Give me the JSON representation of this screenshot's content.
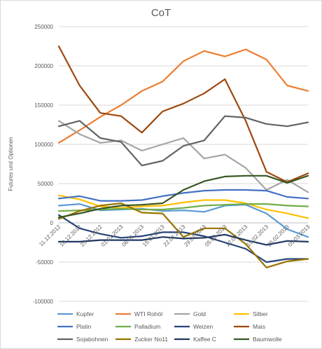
{
  "chart_data": {
    "type": "line",
    "title": "CoT",
    "xlabel": "",
    "ylabel": "Futures und Optionen",
    "ylim": [
      -100000,
      250000
    ],
    "ytick_step": 50000,
    "ytick_labels": [
      "250000",
      "200000",
      "150000",
      "100000",
      "50000",
      "0",
      "-50000",
      "-100000"
    ],
    "grid": true,
    "legend_position": "bottom",
    "categories": [
      "11.12.2012",
      "18.12.2012",
      "25.12.2012",
      "01.01.2013",
      "08.01.2013",
      "15.01.2013",
      "22.01.2013",
      "29.01.2013",
      "05.02.2013",
      "12.02.2013",
      "19.02.2013",
      "26.02.2013",
      "05.03.2013"
    ],
    "tick_labels": [
      "11.12.2012",
      "18.12.2012",
      "25.12.2012",
      "01.01.2013",
      "08.01.2013",
      "15.01.2013",
      "22.01.2013",
      "29.01.2013",
      "05.02.2013",
      "12.02.2013",
      "19.02.2013",
      "26.02.2013",
      "05.03.2013"
    ],
    "series": [
      {
        "name": "Kupfer",
        "color": "#5b9bd5",
        "values": [
          22000,
          24000,
          16000,
          17000,
          18000,
          15000,
          16000,
          14000,
          22000,
          23000,
          12000,
          -8000,
          -18000
        ]
      },
      {
        "name": "WTI Rohöl",
        "color": "#ed7d31",
        "values": [
          102000,
          118000,
          135000,
          150000,
          168000,
          180000,
          206000,
          219000,
          212000,
          221000,
          208000,
          175000,
          168000
        ]
      },
      {
        "name": "Gold",
        "color": "#a5a5a5",
        "values": [
          130000,
          113000,
          102000,
          105000,
          92000,
          100000,
          108000,
          82000,
          87000,
          70000,
          42000,
          55000,
          39000
        ]
      },
      {
        "name": "Silber",
        "color": "#ffc000",
        "values": [
          35000,
          30000,
          21000,
          19000,
          21000,
          22000,
          26000,
          29000,
          29000,
          25000,
          17000,
          12000,
          6000
        ]
      },
      {
        "name": "Platin",
        "color": "#4472c4",
        "values": [
          31000,
          34000,
          28000,
          28000,
          29000,
          34000,
          38000,
          41000,
          42000,
          42000,
          41000,
          33000,
          31000
        ]
      },
      {
        "name": "Palladium",
        "color": "#70ad47",
        "values": [
          15000,
          16000,
          17000,
          18000,
          17000,
          17000,
          19000,
          22000,
          23000,
          24000,
          24000,
          22000,
          21000
        ]
      },
      {
        "name": "Weizen",
        "color": "#264478",
        "values": [
          10000,
          -7000,
          -14000,
          -19000,
          -17000,
          -12000,
          -12000,
          -17000,
          -25000,
          -33000,
          -50000,
          -46000,
          -46000
        ]
      },
      {
        "name": "Mais",
        "color": "#9e480e",
        "values": [
          225000,
          175000,
          140000,
          136000,
          115000,
          142000,
          152000,
          165000,
          183000,
          130000,
          65000,
          52000,
          63000
        ]
      },
      {
        "name": "Sojabohnen",
        "color": "#636363",
        "values": [
          123000,
          130000,
          108000,
          103000,
          73000,
          79000,
          98000,
          105000,
          136000,
          134000,
          126000,
          123000,
          128000
        ]
      },
      {
        "name": "Zucker No11",
        "color": "#997300",
        "values": [
          5000,
          15000,
          22000,
          25000,
          13000,
          12000,
          -18000,
          -7000,
          -7000,
          -27000,
          -57000,
          -49000,
          -46000
        ]
      },
      {
        "name": "Kaffee C",
        "color": "#203864",
        "values": [
          -24000,
          -24000,
          -22000,
          -22000,
          -22000,
          -18000,
          -20000,
          -19000,
          -15000,
          -22000,
          -28000,
          -23000,
          -24000
        ]
      },
      {
        "name": "Baumwolle",
        "color": "#375623",
        "values": [
          7000,
          12000,
          18000,
          22000,
          23000,
          25000,
          42000,
          53000,
          59000,
          60000,
          60000,
          51000,
          60000
        ]
      }
    ]
  }
}
